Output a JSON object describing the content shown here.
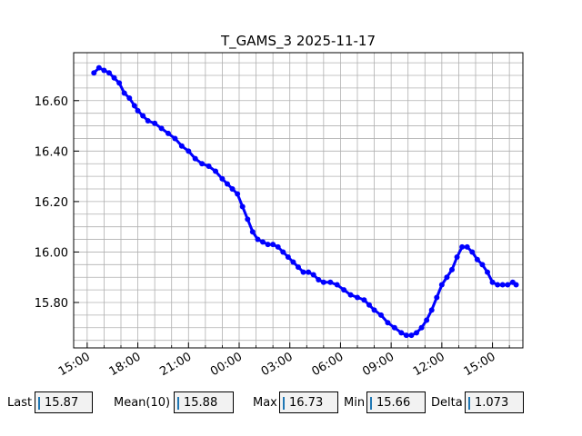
{
  "chart_data": {
    "type": "line",
    "title": "T_GAMS_3 2025-11-17",
    "xlabel": "",
    "ylabel": "",
    "x_tick_labels": [
      "15:00",
      "18:00",
      "21:00",
      "00:00",
      "03:00",
      "06:00",
      "09:00",
      "12:00",
      "15:00"
    ],
    "y_tick_labels": [
      "15.80",
      "16.00",
      "16.20",
      "16.40",
      "16.60"
    ],
    "y_ticks": [
      15.8,
      16.0,
      16.2,
      16.4,
      16.6
    ],
    "ylim": [
      15.62,
      16.79
    ],
    "xlim_hours": [
      14.2,
      40.8
    ],
    "grid": true,
    "series": [
      {
        "color": "#0000ff",
        "points": [
          [
            15.4,
            16.71
          ],
          [
            15.7,
            16.73
          ],
          [
            16.0,
            16.72
          ],
          [
            16.3,
            16.71
          ],
          [
            16.6,
            16.69
          ],
          [
            16.9,
            16.67
          ],
          [
            17.2,
            16.63
          ],
          [
            17.5,
            16.61
          ],
          [
            17.8,
            16.58
          ],
          [
            18.0,
            16.56
          ],
          [
            18.3,
            16.54
          ],
          [
            18.6,
            16.52
          ],
          [
            19.0,
            16.51
          ],
          [
            19.4,
            16.49
          ],
          [
            19.8,
            16.47
          ],
          [
            20.2,
            16.45
          ],
          [
            20.6,
            16.42
          ],
          [
            21.0,
            16.4
          ],
          [
            21.4,
            16.37
          ],
          [
            21.8,
            16.35
          ],
          [
            22.2,
            16.34
          ],
          [
            22.6,
            16.32
          ],
          [
            23.0,
            16.29
          ],
          [
            23.3,
            16.27
          ],
          [
            23.6,
            16.25
          ],
          [
            23.9,
            16.23
          ],
          [
            24.2,
            16.18
          ],
          [
            24.5,
            16.13
          ],
          [
            24.8,
            16.08
          ],
          [
            25.1,
            16.05
          ],
          [
            25.4,
            16.04
          ],
          [
            25.7,
            16.03
          ],
          [
            26.0,
            16.03
          ],
          [
            26.3,
            16.02
          ],
          [
            26.6,
            16.0
          ],
          [
            26.9,
            15.98
          ],
          [
            27.2,
            15.96
          ],
          [
            27.5,
            15.94
          ],
          [
            27.8,
            15.92
          ],
          [
            28.1,
            15.92
          ],
          [
            28.4,
            15.91
          ],
          [
            28.7,
            15.89
          ],
          [
            29.0,
            15.88
          ],
          [
            29.4,
            15.88
          ],
          [
            29.8,
            15.87
          ],
          [
            30.2,
            15.85
          ],
          [
            30.6,
            15.83
          ],
          [
            31.0,
            15.82
          ],
          [
            31.4,
            15.81
          ],
          [
            31.7,
            15.79
          ],
          [
            32.0,
            15.77
          ],
          [
            32.4,
            15.75
          ],
          [
            32.8,
            15.72
          ],
          [
            33.2,
            15.7
          ],
          [
            33.6,
            15.68
          ],
          [
            33.9,
            15.67
          ],
          [
            34.2,
            15.67
          ],
          [
            34.5,
            15.68
          ],
          [
            34.8,
            15.7
          ],
          [
            35.1,
            15.73
          ],
          [
            35.4,
            15.77
          ],
          [
            35.7,
            15.82
          ],
          [
            36.0,
            15.87
          ],
          [
            36.3,
            15.9
          ],
          [
            36.6,
            15.93
          ],
          [
            36.9,
            15.98
          ],
          [
            37.2,
            16.02
          ],
          [
            37.5,
            16.02
          ],
          [
            37.8,
            16.0
          ],
          [
            38.1,
            15.97
          ],
          [
            38.4,
            15.95
          ],
          [
            38.7,
            15.92
          ],
          [
            39.0,
            15.88
          ],
          [
            39.3,
            15.87
          ],
          [
            39.6,
            15.87
          ],
          [
            39.9,
            15.87
          ],
          [
            40.2,
            15.88
          ],
          [
            40.4,
            15.87
          ]
        ]
      }
    ]
  },
  "stats": [
    {
      "label": "Last",
      "value": "15.87"
    },
    {
      "label": "Mean(10)",
      "value": "15.88"
    },
    {
      "label": "Max",
      "value": "16.73"
    },
    {
      "label": "Min",
      "value": "15.66"
    },
    {
      "label": "Delta",
      "value": "1.073"
    }
  ]
}
